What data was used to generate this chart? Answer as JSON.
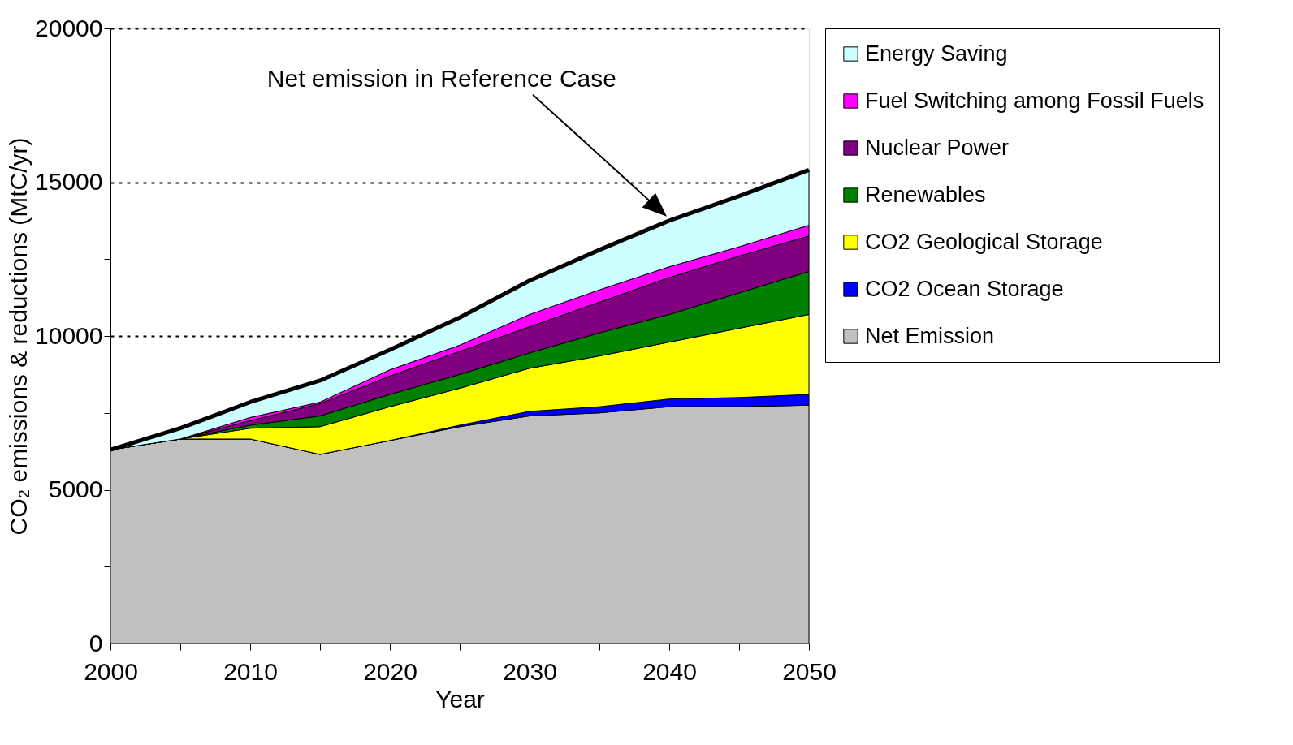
{
  "chart_data": {
    "type": "area",
    "stacked": true,
    "xlabel": "Year",
    "ylabel": "CO₂ emissions & reductions (MtC/yr)",
    "x": [
      2000,
      2005,
      2010,
      2015,
      2020,
      2025,
      2030,
      2035,
      2040,
      2045,
      2050
    ],
    "xlim": [
      2000,
      2050
    ],
    "xticks": [
      2000,
      {
        "value": 2005,
        "label": null
      },
      2010,
      {
        "value": 2015,
        "label": null
      },
      2020,
      {
        "value": 2025,
        "label": null
      },
      2030,
      {
        "value": 2035,
        "label": null
      },
      2040,
      {
        "value": 2045,
        "label": null
      },
      2050
    ],
    "ylim": [
      0,
      20000
    ],
    "yticks": [
      0,
      {
        "value": 2500,
        "label": null
      },
      5000,
      {
        "value": 7500,
        "label": null
      },
      10000,
      {
        "value": 12500,
        "label": null
      },
      15000,
      {
        "value": 17500,
        "label": null
      },
      20000
    ],
    "grid": "y",
    "legend": "right",
    "series": [
      {
        "name": "Net Emission",
        "color": "#c0c0c0",
        "values": [
          6300,
          6650,
          6650,
          6150,
          6600,
          7050,
          7400,
          7500,
          7700,
          7700,
          7750
        ]
      },
      {
        "name": "CO2 Ocean Storage",
        "color": "#0000ff",
        "values": [
          0,
          0,
          0,
          0,
          0,
          50,
          150,
          200,
          250,
          300,
          350
        ]
      },
      {
        "name": "CO2 Geological Storage",
        "color": "#ffff00",
        "values": [
          0,
          0,
          350,
          900,
          1100,
          1200,
          1400,
          1650,
          1850,
          2250,
          2600
        ]
      },
      {
        "name": "Renewables",
        "color": "#008000",
        "values": [
          0,
          0,
          100,
          350,
          400,
          450,
          500,
          750,
          900,
          1150,
          1400
        ]
      },
      {
        "name": "Nuclear Power",
        "color": "#800080",
        "values": [
          0,
          0,
          150,
          400,
          600,
          750,
          850,
          1000,
          1200,
          1200,
          1150
        ]
      },
      {
        "name": "Fuel Switching among Fossil Fuels",
        "color": "#ff00ff",
        "values": [
          0,
          0,
          100,
          50,
          200,
          200,
          400,
          400,
          350,
          300,
          350
        ]
      },
      {
        "name": "Energy Saving",
        "color": "#ccffff",
        "values": [
          0,
          350,
          500,
          700,
          650,
          900,
          1100,
          1300,
          1500,
          1650,
          1800
        ]
      }
    ],
    "annotations": [
      "Net emission in Reference Case"
    ]
  }
}
